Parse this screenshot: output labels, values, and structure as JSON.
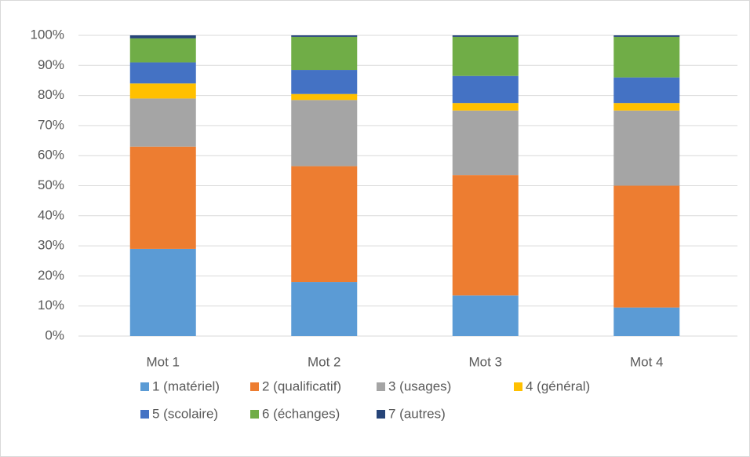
{
  "chart_data": {
    "type": "stacked_bar",
    "categories": [
      "Mot 1",
      "Mot 2",
      "Mot 3",
      "Mot 4"
    ],
    "series": [
      {
        "name": "1 (matériel)",
        "color": "#5b9bd5",
        "values": [
          29,
          18,
          13.5,
          9.5
        ]
      },
      {
        "name": "2 (qualificatif)",
        "color": "#ed7d31",
        "values": [
          34,
          38.5,
          40,
          40.5
        ]
      },
      {
        "name": "3 (usages)",
        "color": "#a5a5a5",
        "values": [
          16,
          22,
          21.5,
          25
        ]
      },
      {
        "name": "4 (général)",
        "color": "#ffc000",
        "values": [
          5,
          2,
          2.5,
          2.5
        ]
      },
      {
        "name": "5 (scolaire)",
        "color": "#4472c4",
        "values": [
          7,
          8,
          9,
          8.5
        ]
      },
      {
        "name": "6 (échanges)",
        "color": "#70ad47",
        "values": [
          8,
          11,
          13,
          13.5
        ]
      },
      {
        "name": "7 (autres)",
        "color": "#264478",
        "values": [
          1,
          0.5,
          0.5,
          0.5
        ]
      }
    ],
    "ylim": [
      0,
      100
    ],
    "yticks": [
      {
        "value": 0,
        "label": "0%"
      },
      {
        "value": 10,
        "label": "10%"
      },
      {
        "value": 20,
        "label": "20%"
      },
      {
        "value": 30,
        "label": "30%"
      },
      {
        "value": 40,
        "label": "40%"
      },
      {
        "value": 50,
        "label": "50%"
      },
      {
        "value": 60,
        "label": "60%"
      },
      {
        "value": 70,
        "label": "70%"
      },
      {
        "value": 80,
        "label": "80%"
      },
      {
        "value": 90,
        "label": "90%"
      },
      {
        "value": 100,
        "label": "100%"
      }
    ],
    "grid": true,
    "legend": "bottom"
  }
}
